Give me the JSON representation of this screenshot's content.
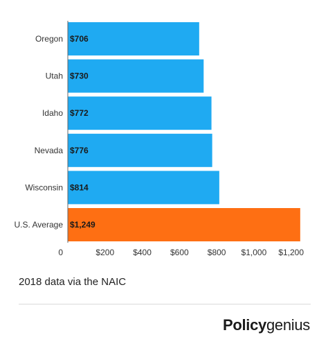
{
  "chart_data": {
    "type": "bar",
    "orientation": "horizontal",
    "categories": [
      "Oregon",
      "Utah",
      "Idaho",
      "Nevada",
      "Wisconsin",
      "U.S. Average"
    ],
    "values": [
      706,
      730,
      772,
      776,
      814,
      1249
    ],
    "value_labels": [
      "$706",
      "$730",
      "$772",
      "$776",
      "$814",
      "$1,249"
    ],
    "xlim": [
      0,
      1300
    ],
    "x_ticks": [
      0,
      200,
      400,
      600,
      800,
      1000,
      1200
    ],
    "x_tick_labels": [
      "0",
      "$200",
      "$400",
      "$600",
      "$800",
      "$1,000",
      "$1,200"
    ],
    "colors": {
      "default": "#1faaf2",
      "highlight": "#fe6f13",
      "axis": "#666666"
    },
    "highlight_index": 5,
    "grid": false,
    "legend": "none"
  },
  "footer": {
    "note": "2018 data via the NAIC",
    "logo": "Policygenius",
    "logo_bold": "Policy",
    "logo_rest": "genius"
  }
}
